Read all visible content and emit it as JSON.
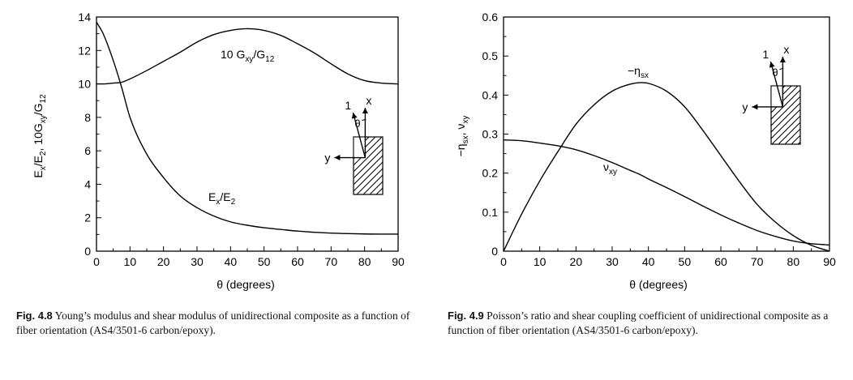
{
  "chart_data": [
    {
      "type": "line",
      "xlabel": "θ (degrees)",
      "ylabel": "Ex/E2, 10Gxy/G12",
      "xlim": [
        0,
        90
      ],
      "ylim": [
        0,
        14
      ],
      "xticks": [
        0,
        10,
        20,
        30,
        40,
        50,
        60,
        70,
        80,
        90
      ],
      "yticks": [
        0,
        2,
        4,
        6,
        8,
        10,
        12,
        14
      ],
      "x": [
        0,
        2,
        5,
        7.5,
        10,
        15,
        20,
        25,
        30,
        35,
        40,
        45,
        50,
        55,
        60,
        65,
        70,
        75,
        80,
        85,
        90
      ],
      "series": [
        {
          "name": "Ex/E2",
          "values": [
            13.7,
            13.0,
            11.4,
            9.8,
            8.0,
            5.8,
            4.4,
            3.3,
            2.6,
            2.1,
            1.75,
            1.55,
            1.4,
            1.3,
            1.2,
            1.13,
            1.08,
            1.05,
            1.03,
            1.02,
            1.02
          ]
        },
        {
          "name": "10 Gxy/G12",
          "values": [
            10.0,
            10.0,
            10.05,
            10.1,
            10.3,
            10.8,
            11.35,
            11.9,
            12.5,
            12.95,
            13.2,
            13.3,
            13.2,
            12.9,
            12.4,
            11.85,
            11.2,
            10.6,
            10.2,
            10.05,
            10.0
          ]
        }
      ],
      "inset_labels": {
        "fiber": "1",
        "x": "x",
        "y": "y",
        "theta": "θ"
      }
    },
    {
      "type": "line",
      "xlabel": "θ (degrees)",
      "ylabel": "−ηsx, νxy",
      "xlim": [
        0,
        90
      ],
      "ylim": [
        0,
        0.6
      ],
      "xticks": [
        0,
        10,
        20,
        30,
        40,
        50,
        60,
        70,
        80,
        90
      ],
      "yticks": [
        0,
        0.1,
        0.2,
        0.3,
        0.4,
        0.5,
        0.6
      ],
      "x": [
        0,
        5,
        10,
        15,
        20,
        25,
        30,
        35,
        38,
        40,
        45,
        50,
        55,
        60,
        65,
        70,
        75,
        80,
        85,
        90
      ],
      "series": [
        {
          "name": "−ηsx",
          "values": [
            0.0,
            0.095,
            0.18,
            0.255,
            0.325,
            0.375,
            0.41,
            0.428,
            0.432,
            0.43,
            0.41,
            0.37,
            0.31,
            0.245,
            0.18,
            0.12,
            0.075,
            0.04,
            0.015,
            0.0
          ]
        },
        {
          "name": "νxy",
          "values": [
            0.285,
            0.283,
            0.277,
            0.27,
            0.26,
            0.245,
            0.227,
            0.207,
            0.195,
            0.185,
            0.163,
            0.14,
            0.116,
            0.093,
            0.072,
            0.053,
            0.038,
            0.026,
            0.019,
            0.016
          ]
        }
      ],
      "inset_labels": {
        "fiber": "1",
        "x": "x",
        "y": "y",
        "theta": "θ"
      }
    }
  ],
  "captions": {
    "fig48_num": "Fig. 4.8",
    "fig48_text": "Young’s modulus and shear modulus of unidirectional composite as a function of fiber orientation (AS4/3501-6 carbon/epoxy).",
    "fig49_num": "Fig. 4.9",
    "fig49_text": "Poisson’s ratio and shear coupling coefficient of unidirectional composite as a function of fiber orientation (AS4/3501-6 carbon/epoxy)."
  }
}
